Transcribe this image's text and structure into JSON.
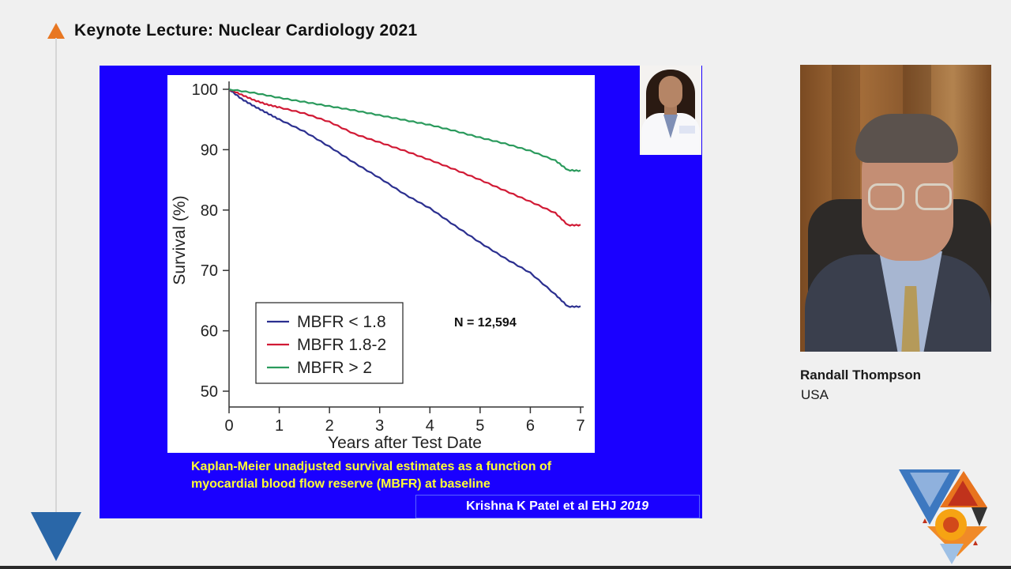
{
  "header": {
    "title": "Keynote Lecture: Nuclear Cardiology 2021"
  },
  "slide": {
    "caption_line1": "Kaplan-Meier unadjusted survival estimates as a function of",
    "caption_line2": "myocardial blood flow reserve (MBFR) at baseline",
    "citation": "Krishna K Patel et al EHJ",
    "citation_year": "2019",
    "n_label": "N = 12,594"
  },
  "speaker": {
    "name": "Randall Thompson",
    "country": "USA"
  },
  "colors": {
    "slide_bg": "#1a00ff",
    "caption": "#ffff33",
    "accent_orange": "#e87722",
    "accent_blue": "#2a67a8"
  },
  "icons": {
    "title_marker": "orange-triangle-icon",
    "nav_marker": "blue-triangle-icon",
    "logo": "conference-logo-icon"
  },
  "chart_data": {
    "type": "line",
    "title": "",
    "xlabel": "Years after Test Date",
    "ylabel": "Survival (%)",
    "xlim": [
      0,
      7
    ],
    "ylim": [
      50,
      100
    ],
    "xticks": [
      0,
      1,
      2,
      3,
      4,
      5,
      6,
      7
    ],
    "yticks": [
      50,
      60,
      70,
      80,
      90,
      100
    ],
    "grid": false,
    "legend_position": "bottom-left",
    "series": [
      {
        "name": "MBFR < 1.8",
        "color": "#2b2f8f",
        "x": [
          0,
          0.25,
          0.5,
          0.75,
          1,
          1.5,
          2,
          2.5,
          3,
          3.5,
          4,
          4.5,
          5,
          5.5,
          6,
          6.5,
          6.75,
          7
        ],
        "y": [
          100,
          98.4,
          97.2,
          96.1,
          95,
          93,
          90.5,
          87.8,
          85.3,
          82.6,
          80.3,
          77.4,
          74.6,
          72,
          69.6,
          66,
          64,
          64
        ]
      },
      {
        "name": "MBFR 1.8-2",
        "color": "#d11a35",
        "x": [
          0,
          0.25,
          0.5,
          0.75,
          1,
          1.5,
          2,
          2.5,
          3,
          3.5,
          4,
          4.5,
          5,
          5.5,
          6,
          6.5,
          6.75,
          7
        ],
        "y": [
          100,
          99.1,
          98.2,
          97.5,
          97,
          96,
          94.6,
          92.6,
          91.2,
          89.8,
          88.3,
          86.7,
          85,
          83.2,
          81.4,
          79.5,
          77.5,
          77.5
        ]
      },
      {
        "name": "MBFR > 2",
        "color": "#2a9a5c",
        "x": [
          0,
          0.5,
          1,
          1.5,
          2,
          2.5,
          3,
          3.5,
          4,
          4.5,
          5,
          5.5,
          6,
          6.5,
          6.75,
          7
        ],
        "y": [
          100,
          99.4,
          98.6,
          97.9,
          97.2,
          96.5,
          95.7,
          94.9,
          94.1,
          93.1,
          92,
          91,
          89.8,
          88.2,
          86.6,
          86.5
        ]
      }
    ]
  }
}
